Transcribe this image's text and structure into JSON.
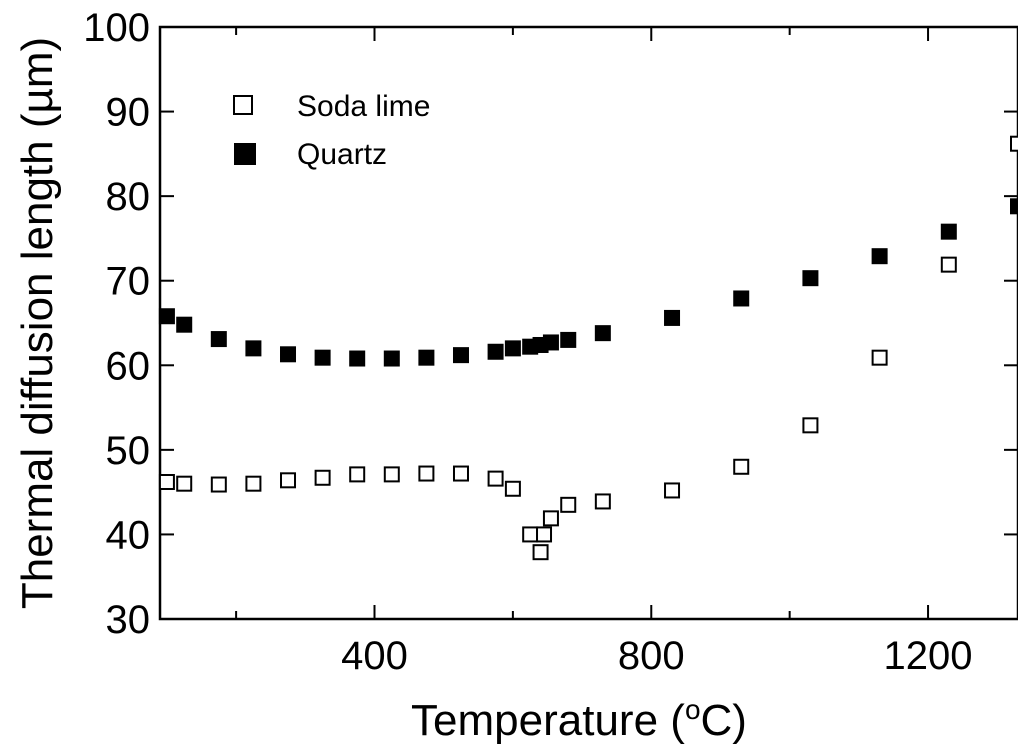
{
  "chart_data": {
    "type": "scatter",
    "title": "",
    "xlabel_main": "Temperature (",
    "xlabel_sup": "o",
    "xlabel_tail": "C)",
    "ylabel": "Thermal diffusion length (µm)",
    "xlim": [
      90,
      1330
    ],
    "ylim": [
      30,
      100
    ],
    "x_ticks": [
      400,
      800,
      1200
    ],
    "x_tick_labels": [
      "400",
      "800",
      "1200"
    ],
    "x_minor_ticks": [
      200,
      600,
      1000
    ],
    "y_ticks": [
      30,
      40,
      50,
      60,
      70,
      80,
      90,
      100
    ],
    "y_tick_labels": [
      "30",
      "40",
      "50",
      "60",
      "70",
      "80",
      "90",
      "100"
    ],
    "grid": false,
    "legend_position": "top-left",
    "series": [
      {
        "name": "Soda lime",
        "marker": "open-square",
        "color": "#000000",
        "x": [
          100,
          125,
          175,
          225,
          275,
          325,
          375,
          425,
          475,
          525,
          575,
          600,
          625,
          640,
          645,
          655,
          680,
          730,
          830,
          930,
          1030,
          1130,
          1230,
          1330
        ],
        "y": [
          46.2,
          46.0,
          45.9,
          46.0,
          46.4,
          46.7,
          47.1,
          47.1,
          47.2,
          47.2,
          46.6,
          45.4,
          40.0,
          37.9,
          40.0,
          41.9,
          43.5,
          43.9,
          45.2,
          48.0,
          52.9,
          60.9,
          71.9,
          86.2
        ]
      },
      {
        "name": "Quartz",
        "marker": "filled-square",
        "color": "#000000",
        "x": [
          100,
          125,
          175,
          225,
          275,
          325,
          375,
          425,
          475,
          525,
          575,
          600,
          625,
          640,
          655,
          680,
          730,
          830,
          930,
          1030,
          1130,
          1230,
          1330
        ],
        "y": [
          65.8,
          64.8,
          63.1,
          62.0,
          61.3,
          60.9,
          60.8,
          60.8,
          60.9,
          61.2,
          61.6,
          62.0,
          62.2,
          62.4,
          62.7,
          63.0,
          63.8,
          65.6,
          67.9,
          70.3,
          72.9,
          75.8,
          78.8
        ]
      }
    ]
  }
}
